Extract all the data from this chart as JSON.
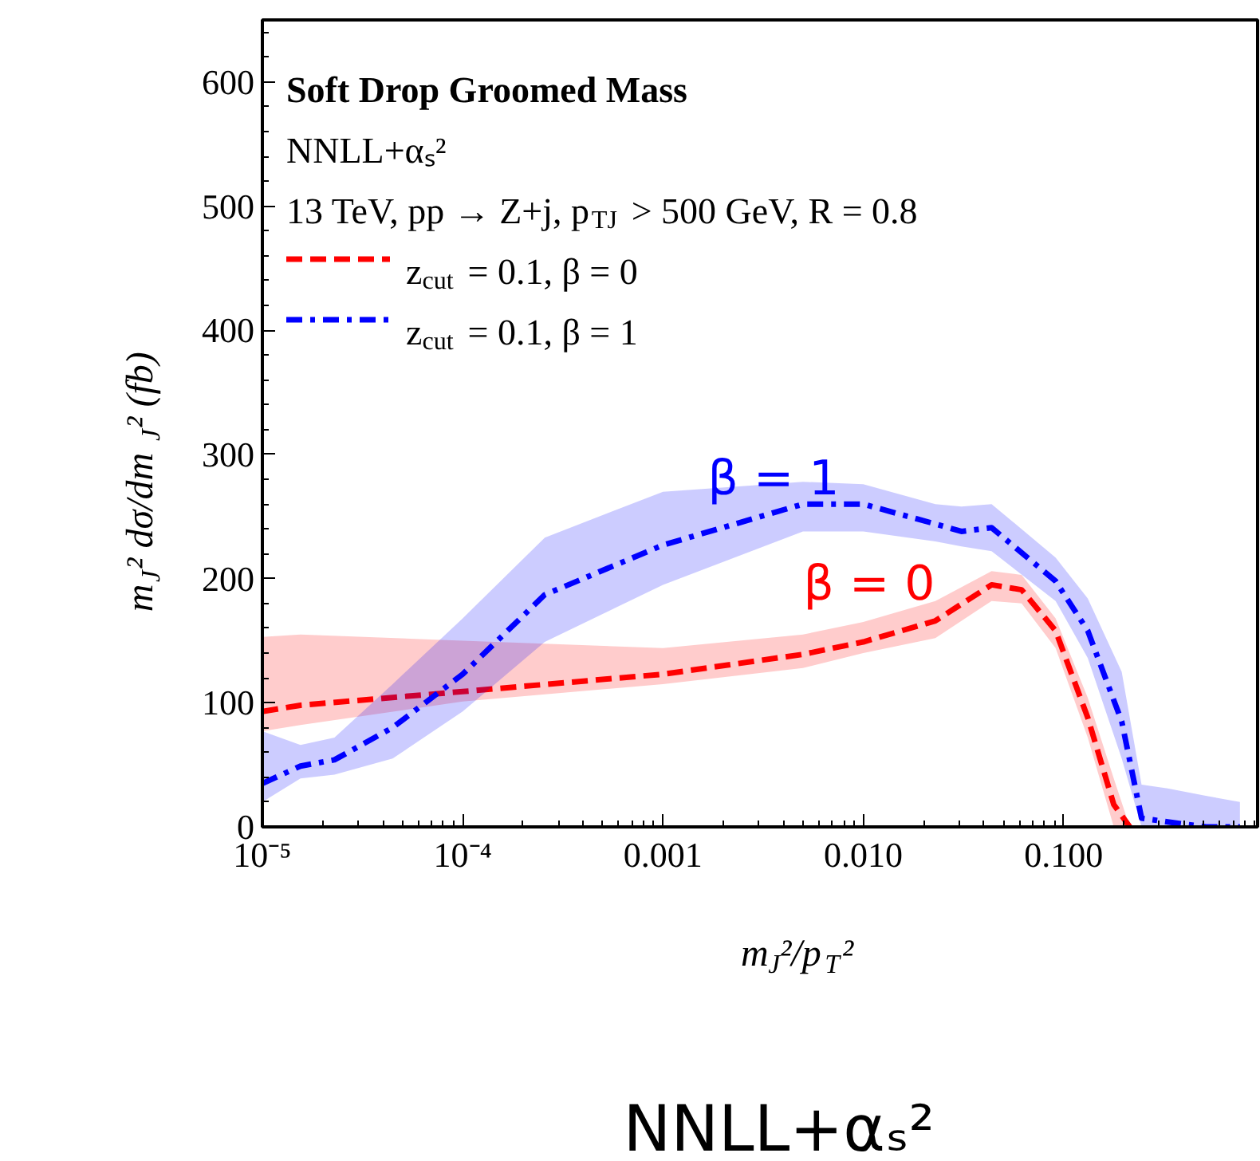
{
  "chart_data": {
    "type": "line",
    "title": "Soft Drop Groomed Mass",
    "subtitle": "NNLL+αₛ²",
    "xlabel": "m$_{J}$²/p$_{T}$²",
    "ylabel": "m$_{J}$² dσ/dm$_{J}$² (fb)",
    "log": "x",
    "grid": false,
    "legend": "top left",
    "xlim": [
      1e-05,
      0.93
    ],
    "ylim": [
      0,
      650
    ],
    "xticks": [
      {
        "value": 1e-05,
        "label": "10⁻⁵"
      },
      {
        "value": 0.0001,
        "label": "10⁻⁴"
      },
      {
        "value": 0.001,
        "label": "0.001"
      },
      {
        "value": 0.01,
        "label": "0.010"
      },
      {
        "value": 0.1,
        "label": "0.100"
      }
    ],
    "yticks": [
      0,
      100,
      200,
      300,
      400,
      500,
      600
    ],
    "series": [
      {
        "name": "z$_{cut}$ = 0.1, β = 0",
        "color": "#ff0000",
        "line_style": "dashed",
        "x": [
          1e-05,
          1.55e-05,
          0.0001,
          0.001,
          0.005,
          0.01,
          0.0229,
          0.0437,
          0.0617,
          0.0912,
          0.132,
          0.178,
          0.214
        ],
        "values": [
          93,
          98,
          109,
          123,
          139,
          149,
          166,
          195,
          191,
          158,
          88,
          18,
          0
        ],
        "upper": [
          153,
          155,
          150,
          144,
          155,
          165,
          182,
          206,
          203,
          168,
          104,
          39,
          0
        ],
        "lower": [
          77,
          82,
          101,
          115,
          128,
          140,
          152,
          182,
          180,
          144,
          72,
          0,
          0
        ]
      },
      {
        "name": "z$_{cut}$ = 0.1, β = 1",
        "color": "#0000ff",
        "line_style": "dashdot",
        "x": [
          1e-05,
          1.55e-05,
          2.29e-05,
          4.47e-05,
          0.0001,
          0.000257,
          0.001,
          0.005,
          0.01,
          0.0229,
          0.0309,
          0.0437,
          0.0912,
          0.132,
          0.195,
          0.245,
          0.331,
          0.513,
          0.759
        ],
        "values": [
          35,
          49,
          54,
          80,
          123,
          187,
          227,
          260,
          260,
          244,
          238,
          241,
          198,
          158,
          85,
          7,
          4,
          0,
          0
        ],
        "upper": [
          77,
          66,
          72,
          115,
          168,
          233,
          270,
          278,
          276,
          260,
          258,
          260,
          217,
          184,
          125,
          34,
          31,
          25,
          20
        ],
        "lower": [
          20,
          39,
          42,
          55,
          93,
          149,
          195,
          238,
          238,
          230,
          226,
          222,
          182,
          136,
          55,
          0,
          0,
          0,
          0
        ]
      }
    ],
    "annotations": [
      "13 TeV, pp → Z+j, p$_{TJ}$ > 500 GeV, R = 0.8",
      "β = 1",
      "β = 0",
      "NNLL+αₛ²"
    ]
  }
}
